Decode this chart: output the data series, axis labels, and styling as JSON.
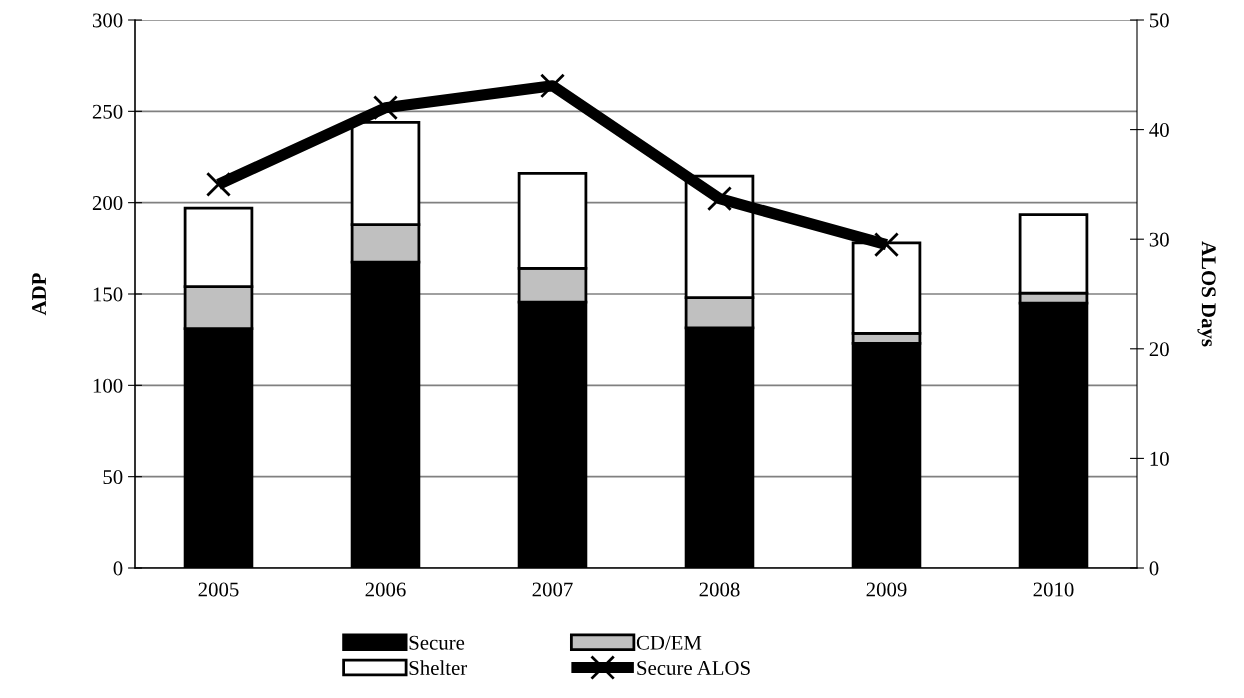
{
  "chart_data": {
    "type": "bar",
    "stacked": true,
    "categories": [
      "2005",
      "2006",
      "2007",
      "2008",
      "2009",
      "2010"
    ],
    "ylabel": "ADP",
    "y2label": "ALOS Days",
    "ylim": [
      0,
      300
    ],
    "yticks": [
      0,
      50,
      100,
      150,
      200,
      250,
      300
    ],
    "y2lim": [
      0,
      50
    ],
    "y2ticks": [
      0,
      10,
      20,
      30,
      40,
      50
    ],
    "grid": "y",
    "legend": "bottom",
    "series": [
      {
        "name": "Secure",
        "color": "#000000",
        "values": [
          131,
          167.5,
          145.5,
          131.5,
          123,
          145
        ]
      },
      {
        "name": "CD/EM",
        "color": "#c0c0c0",
        "values": [
          23,
          20.5,
          18.5,
          16.5,
          5.5,
          5.5
        ]
      },
      {
        "name": "Shelter",
        "color": "#ffffff",
        "values": [
          43,
          56,
          52,
          66.5,
          49.5,
          43
        ]
      },
      {
        "name": "Secure ALOS",
        "type": "line",
        "axis": "y2",
        "color": "#000000",
        "marker": "cross",
        "values": [
          35,
          42,
          44,
          33.7,
          29.5,
          null
        ]
      }
    ]
  }
}
